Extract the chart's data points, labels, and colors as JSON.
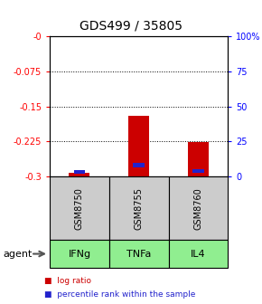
{
  "title": "GDS499 / 35805",
  "samples": [
    "GSM8750",
    "GSM8755",
    "GSM8760"
  ],
  "agents": [
    "IFNg",
    "TNFa",
    "IL4"
  ],
  "log_ratios": [
    -0.292,
    -0.17,
    -0.226
  ],
  "percentile_ranks": [
    3.0,
    8.0,
    4.0
  ],
  "ylim_left": [
    -0.3,
    0.0
  ],
  "ylim_right": [
    0,
    100
  ],
  "yticks_left": [
    0.0,
    -0.075,
    -0.15,
    -0.225,
    -0.3
  ],
  "yticks_right": [
    100,
    75,
    50,
    25,
    0
  ],
  "ytick_labels_left": [
    "-0",
    "-0.075",
    "-0.15",
    "-0.225",
    "-0.3"
  ],
  "ytick_labels_right": [
    "100%",
    "75",
    "50",
    "25",
    "0"
  ],
  "bar_color_red": "#cc0000",
  "bar_color_blue": "#2222cc",
  "sample_box_color": "#cccccc",
  "green_color": "#90ee90",
  "legend_log_ratio": "log ratio",
  "legend_percentile": "percentile rank within the sample",
  "agent_label": "agent"
}
